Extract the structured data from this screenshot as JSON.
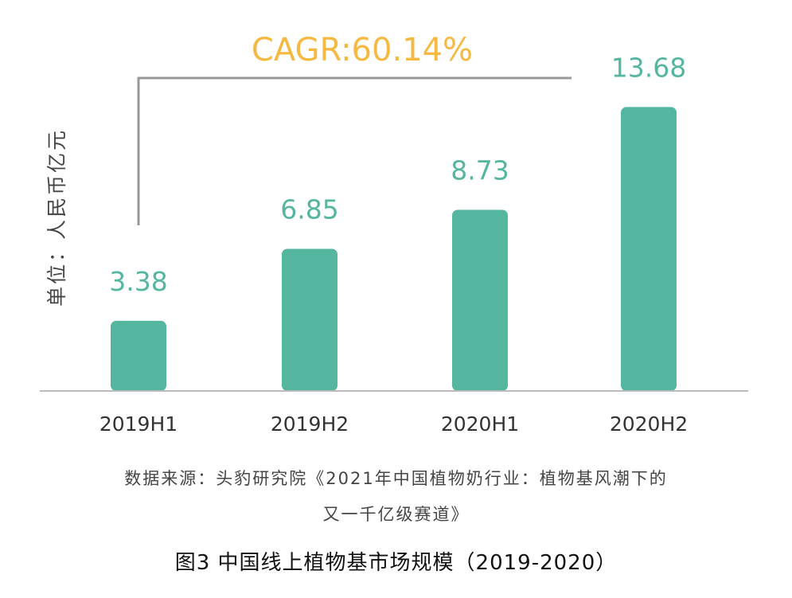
{
  "chart_data": {
    "type": "bar",
    "categories": [
      "2019H1",
      "2019H2",
      "2020H1",
      "2020H2"
    ],
    "values": [
      3.38,
      6.85,
      8.73,
      13.68
    ],
    "value_labels": [
      "3.38",
      "6.85",
      "8.73",
      "13.68"
    ],
    "ylabel": "单位：人民币亿元",
    "ylim": [
      0,
      15
    ],
    "annotation": "CAGR:60.14%",
    "colors": {
      "bar": "#55b6a0",
      "annotation": "#f5b942",
      "bracket": "#999999",
      "axis": "#bbbbbb"
    }
  },
  "source": {
    "line1": "数据来源：头豹研究院《2021年中国植物奶行业：植物基风潮下的",
    "line2": "又一千亿级赛道》"
  },
  "caption": "图3 中国线上植物基市场规模（2019-2020）"
}
